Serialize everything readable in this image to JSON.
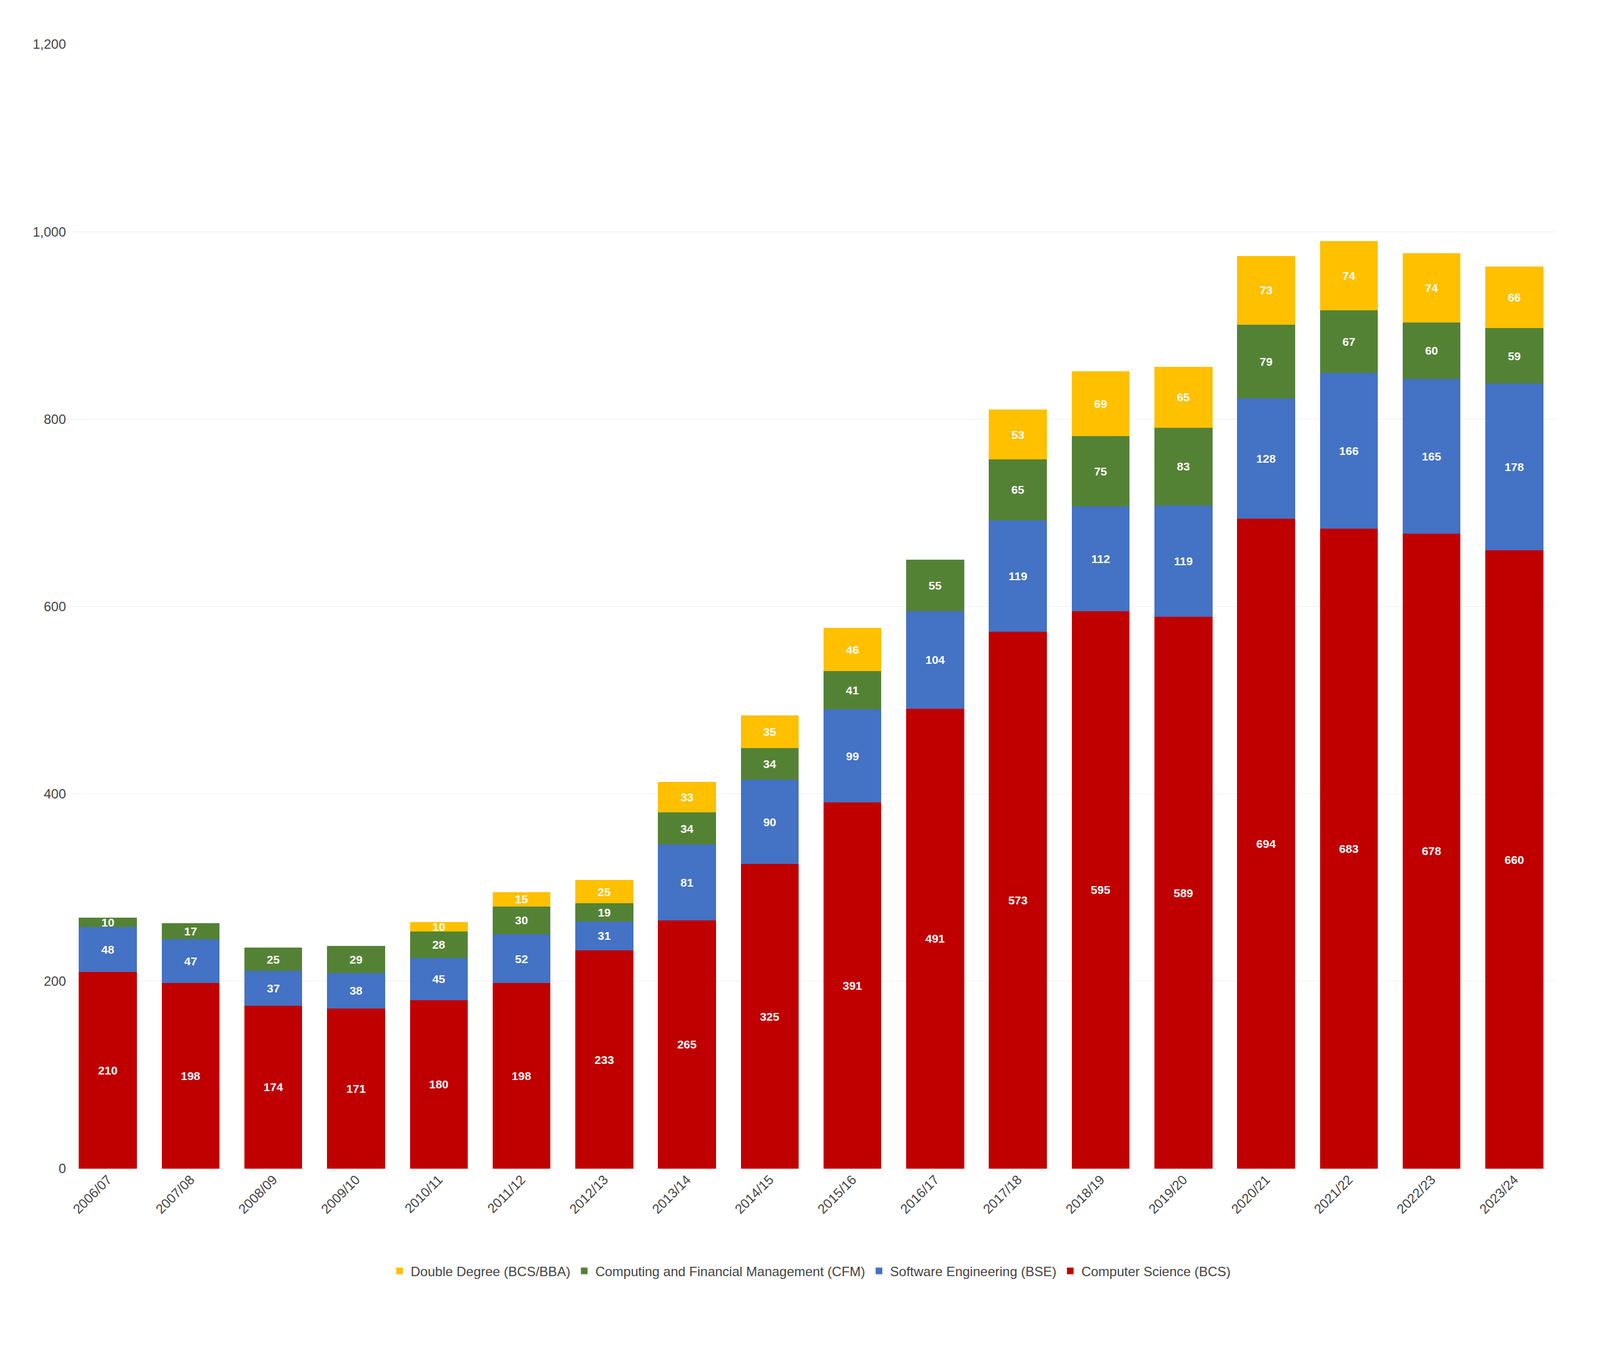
{
  "chart_data": {
    "type": "bar",
    "stacked": true,
    "data_labels": true,
    "grid": true,
    "legend": "bottom",
    "categories": [
      "2006/07",
      "2007/08",
      "2008/09",
      "2009/10",
      "2010/11",
      "2011/12",
      "2012/13",
      "2013/14",
      "2014/15",
      "2015/16",
      "2016/17",
      "2017/18",
      "2018/19",
      "2019/20",
      "2020/21",
      "2021/22",
      "2022/23",
      "2023/24"
    ],
    "series": [
      {
        "name": "Computer Science (BCS)",
        "color": "#C00000",
        "values": [
          210,
          198,
          174,
          171,
          180,
          198,
          233,
          265,
          325,
          391,
          491,
          573,
          595,
          589,
          694,
          683,
          678,
          660
        ]
      },
      {
        "name": "Software Engineering (BSE)",
        "color": "#4472C4",
        "values": [
          48,
          47,
          37,
          38,
          45,
          52,
          31,
          81,
          90,
          99,
          104,
          119,
          112,
          119,
          128,
          166,
          165,
          178
        ]
      },
      {
        "name": "Computing and Financial Management (CFM)",
        "color": "#548235",
        "values": [
          10,
          17,
          25,
          29,
          28,
          30,
          19,
          34,
          34,
          41,
          55,
          65,
          75,
          83,
          79,
          67,
          60,
          59
        ]
      },
      {
        "name": "Double Degree (BCS/BBA)",
        "color": "#FFC000",
        "values": [
          null,
          null,
          null,
          null,
          10,
          15,
          25,
          33,
          35,
          46,
          null,
          53,
          69,
          65,
          73,
          74,
          74,
          66
        ]
      }
    ],
    "ylim": [
      0,
      1200
    ],
    "yticks": [
      0,
      200,
      400,
      600,
      800,
      {
        "value": 1000,
        "label": "1,000"
      },
      {
        "value": 1200,
        "label": "1,200"
      }
    ]
  }
}
